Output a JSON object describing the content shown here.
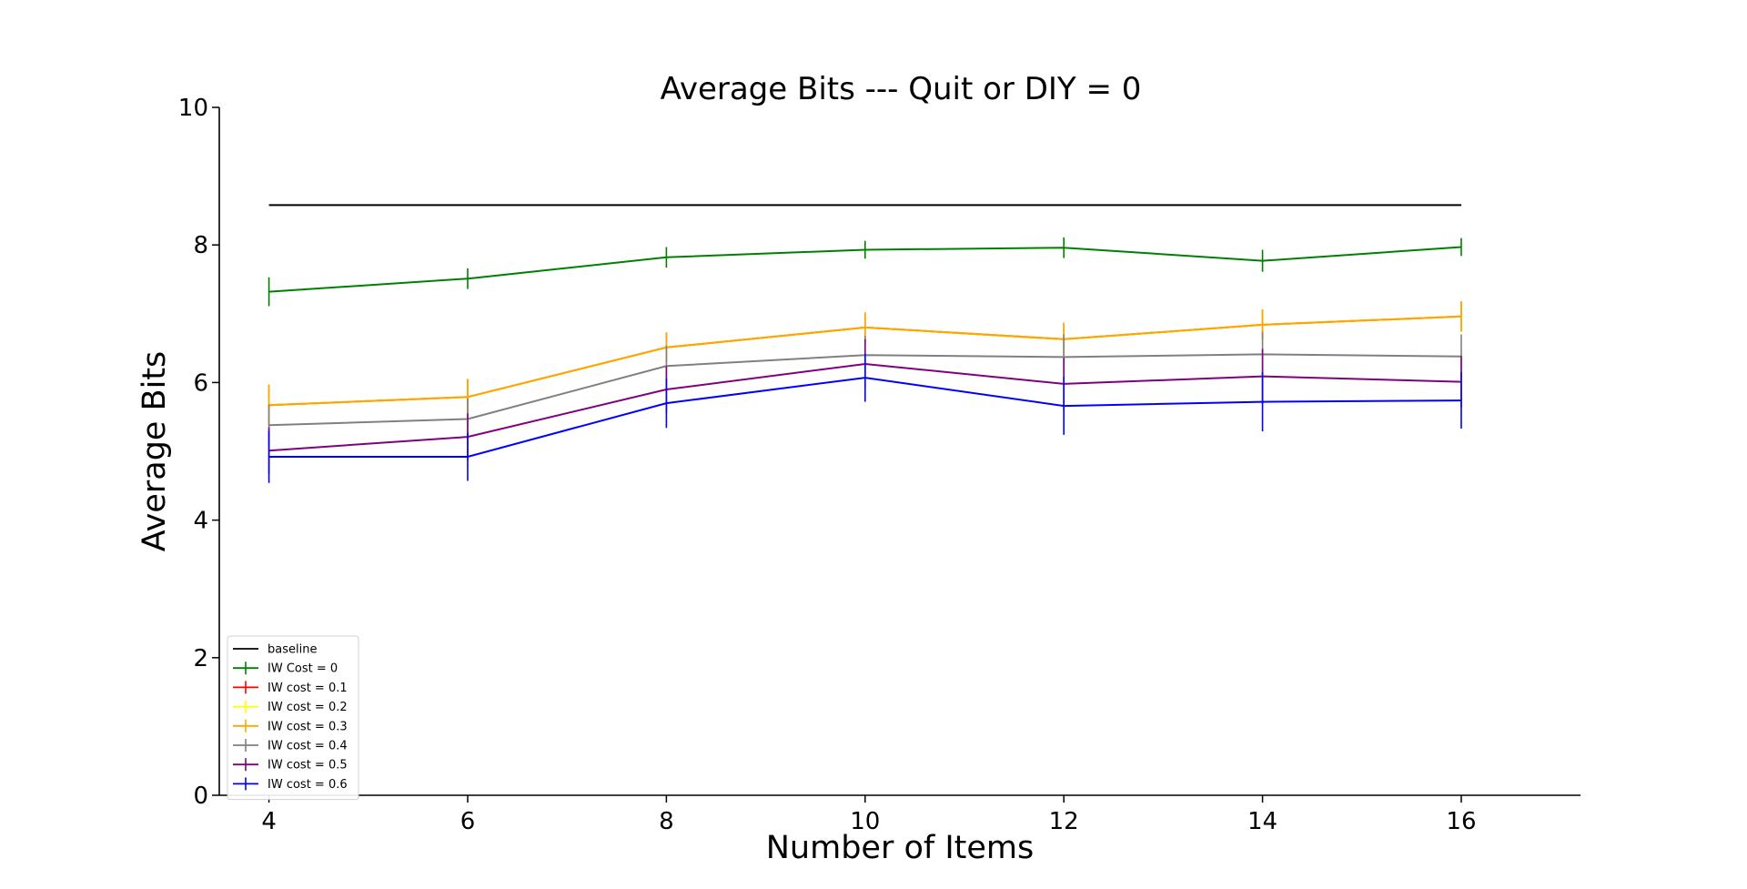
{
  "chart_data": {
    "type": "line",
    "title": "Average Bits --- Quit or DIY = 0",
    "xlabel": "Number of Items",
    "ylabel": "Average Bits",
    "xlim": [
      3.5,
      17.2
    ],
    "ylim": [
      0,
      10
    ],
    "xticks": [
      4,
      6,
      8,
      10,
      12,
      14,
      16
    ],
    "yticks": [
      0,
      2,
      4,
      6,
      8,
      10
    ],
    "grid": false,
    "legend_position": "lower-left",
    "x": [
      4,
      6,
      8,
      10,
      12,
      14,
      16
    ],
    "series": [
      {
        "name": "baseline",
        "color": "#000000",
        "errorbars": false,
        "values": [
          8.58,
          8.58,
          8.58,
          8.58,
          8.58,
          8.58,
          8.58
        ]
      },
      {
        "name": "IW Cost = 0",
        "color": "#008000",
        "errorbars": true,
        "values": [
          7.32,
          7.51,
          7.82,
          7.93,
          7.96,
          7.77,
          7.97
        ],
        "errors": [
          0.21,
          0.15,
          0.15,
          0.13,
          0.15,
          0.16,
          0.13
        ]
      },
      {
        "name": "IW cost = 0.1",
        "color": "#ff0000",
        "errorbars": true,
        "values": [
          5.67,
          5.79,
          6.51,
          6.8,
          6.63,
          6.84,
          6.96
        ],
        "errors": [
          0.3,
          0.26,
          0.22,
          0.22,
          0.24,
          0.22,
          0.22
        ]
      },
      {
        "name": "IW cost = 0.2",
        "color": "#ffff00",
        "errorbars": true,
        "values": [
          5.67,
          5.79,
          6.51,
          6.8,
          6.63,
          6.84,
          6.96
        ],
        "errors": [
          0.3,
          0.26,
          0.22,
          0.22,
          0.24,
          0.22,
          0.22
        ]
      },
      {
        "name": "IW cost = 0.3",
        "color": "#ffa500",
        "errorbars": true,
        "values": [
          5.67,
          5.79,
          6.51,
          6.8,
          6.63,
          6.84,
          6.96
        ],
        "errors": [
          0.3,
          0.26,
          0.22,
          0.22,
          0.24,
          0.22,
          0.22
        ]
      },
      {
        "name": "IW cost = 0.4",
        "color": "#808080",
        "errorbars": true,
        "values": [
          5.38,
          5.47,
          6.24,
          6.4,
          6.37,
          6.41,
          6.38
        ],
        "errors": [
          0.3,
          0.3,
          0.3,
          0.28,
          0.33,
          0.33,
          0.32
        ]
      },
      {
        "name": "IW cost = 0.5",
        "color": "#800080",
        "errorbars": true,
        "values": [
          5.01,
          5.21,
          5.9,
          6.27,
          5.98,
          6.09,
          6.01
        ],
        "errors": [
          0.34,
          0.34,
          0.34,
          0.36,
          0.38,
          0.4,
          0.38
        ]
      },
      {
        "name": "IW cost = 0.6",
        "color": "#0000ff",
        "errorbars": true,
        "values": [
          4.92,
          4.92,
          5.7,
          6.07,
          5.66,
          5.72,
          5.74
        ],
        "errors": [
          0.38,
          0.35,
          0.36,
          0.35,
          0.42,
          0.43,
          0.41
        ]
      }
    ]
  }
}
